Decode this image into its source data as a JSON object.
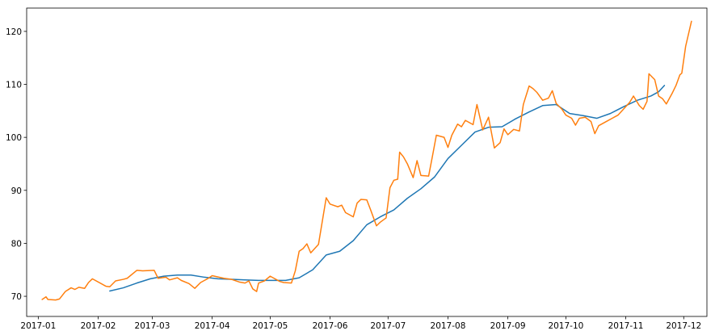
{
  "chart_data": {
    "type": "line",
    "title": "",
    "xlabel": "",
    "ylabel": "",
    "grid": false,
    "x_range": [
      "2016-12-26",
      "2017-12-13"
    ],
    "ylim": [
      66.2,
      124.4
    ],
    "x_ticks": [
      {
        "date": "2017-01-01",
        "label": "2017-01"
      },
      {
        "date": "2017-02-01",
        "label": "2017-02"
      },
      {
        "date": "2017-03-01",
        "label": "2017-03"
      },
      {
        "date": "2017-04-01",
        "label": "2017-04"
      },
      {
        "date": "2017-05-01",
        "label": "2017-05"
      },
      {
        "date": "2017-06-01",
        "label": "2017-06"
      },
      {
        "date": "2017-07-01",
        "label": "2017-07"
      },
      {
        "date": "2017-08-01",
        "label": "2017-08"
      },
      {
        "date": "2017-09-01",
        "label": "2017-09"
      },
      {
        "date": "2017-10-01",
        "label": "2017-10"
      },
      {
        "date": "2017-11-01",
        "label": "2017-11"
      },
      {
        "date": "2017-12-01",
        "label": "2017-12"
      }
    ],
    "y_ticks": [
      {
        "value": 70,
        "label": "70"
      },
      {
        "value": 80,
        "label": "80"
      },
      {
        "value": 90,
        "label": "90"
      },
      {
        "value": 100,
        "label": "100"
      },
      {
        "value": 110,
        "label": "110"
      },
      {
        "value": 120,
        "label": "120"
      }
    ],
    "series": [
      {
        "color": "#1f77b4",
        "points": [
          [
            "2017-02-07",
            71.0
          ],
          [
            "2017-02-14",
            71.6
          ],
          [
            "2017-02-21",
            72.5
          ],
          [
            "2017-02-28",
            73.3
          ],
          [
            "2017-03-07",
            73.8
          ],
          [
            "2017-03-14",
            74.0
          ],
          [
            "2017-03-21",
            74.0
          ],
          [
            "2017-03-28",
            73.6
          ],
          [
            "2017-04-04",
            73.3
          ],
          [
            "2017-04-11",
            73.2
          ],
          [
            "2017-04-18",
            73.1
          ],
          [
            "2017-04-25",
            73.0
          ],
          [
            "2017-05-02",
            73.0
          ],
          [
            "2017-05-09",
            73.0
          ],
          [
            "2017-05-16",
            73.5
          ],
          [
            "2017-05-23",
            75.0
          ],
          [
            "2017-05-30",
            77.8
          ],
          [
            "2017-06-06",
            78.5
          ],
          [
            "2017-06-13",
            80.5
          ],
          [
            "2017-06-20",
            83.5
          ],
          [
            "2017-06-27",
            85.0
          ],
          [
            "2017-07-04",
            86.3
          ],
          [
            "2017-07-11",
            88.5
          ],
          [
            "2017-07-18",
            90.3
          ],
          [
            "2017-07-25",
            92.5
          ],
          [
            "2017-08-01",
            96.0
          ],
          [
            "2017-08-08",
            98.5
          ],
          [
            "2017-08-15",
            101.0
          ],
          [
            "2017-08-22",
            101.9
          ],
          [
            "2017-08-29",
            102.0
          ],
          [
            "2017-09-05",
            103.5
          ],
          [
            "2017-09-12",
            104.8
          ],
          [
            "2017-09-19",
            106.0
          ],
          [
            "2017-09-26",
            106.2
          ],
          [
            "2017-10-03",
            104.5
          ],
          [
            "2017-10-10",
            104.1
          ],
          [
            "2017-10-17",
            103.6
          ],
          [
            "2017-10-24",
            104.5
          ],
          [
            "2017-10-31",
            105.8
          ],
          [
            "2017-11-07",
            107.0
          ],
          [
            "2017-11-14",
            107.8
          ],
          [
            "2017-11-18",
            108.6
          ],
          [
            "2017-11-21",
            109.8
          ]
        ]
      },
      {
        "color": "#ff7f0e",
        "points": [
          [
            "2017-01-03",
            69.4
          ],
          [
            "2017-01-05",
            69.9
          ],
          [
            "2017-01-06",
            69.4
          ],
          [
            "2017-01-10",
            69.3
          ],
          [
            "2017-01-12",
            69.5
          ],
          [
            "2017-01-15",
            70.9
          ],
          [
            "2017-01-18",
            71.6
          ],
          [
            "2017-01-20",
            71.3
          ],
          [
            "2017-01-22",
            71.7
          ],
          [
            "2017-01-25",
            71.5
          ],
          [
            "2017-01-27",
            72.6
          ],
          [
            "2017-01-29",
            73.3
          ],
          [
            "2017-02-05",
            71.9
          ],
          [
            "2017-02-07",
            71.8
          ],
          [
            "2017-02-10",
            72.9
          ],
          [
            "2017-02-14",
            73.2
          ],
          [
            "2017-02-16",
            73.4
          ],
          [
            "2017-02-21",
            74.9
          ],
          [
            "2017-02-24",
            74.8
          ],
          [
            "2017-03-02",
            74.9
          ],
          [
            "2017-03-04",
            73.4
          ],
          [
            "2017-03-08",
            73.6
          ],
          [
            "2017-03-10",
            73.1
          ],
          [
            "2017-03-14",
            73.5
          ],
          [
            "2017-03-16",
            73.0
          ],
          [
            "2017-03-20",
            72.4
          ],
          [
            "2017-03-23",
            71.5
          ],
          [
            "2017-03-26",
            72.6
          ],
          [
            "2017-03-30",
            73.4
          ],
          [
            "2017-04-01",
            73.9
          ],
          [
            "2017-04-07",
            73.4
          ],
          [
            "2017-04-11",
            73.2
          ],
          [
            "2017-04-15",
            72.7
          ],
          [
            "2017-04-18",
            72.5
          ],
          [
            "2017-04-20",
            72.9
          ],
          [
            "2017-04-22",
            71.4
          ],
          [
            "2017-04-24",
            70.9
          ],
          [
            "2017-04-25",
            72.5
          ],
          [
            "2017-04-28",
            72.9
          ],
          [
            "2017-05-01",
            73.8
          ],
          [
            "2017-05-03",
            73.4
          ],
          [
            "2017-05-06",
            72.8
          ],
          [
            "2017-05-08",
            72.6
          ],
          [
            "2017-05-12",
            72.5
          ],
          [
            "2017-05-14",
            74.8
          ],
          [
            "2017-05-16",
            78.5
          ],
          [
            "2017-05-18",
            79.0
          ],
          [
            "2017-05-20",
            79.9
          ],
          [
            "2017-05-22",
            78.2
          ],
          [
            "2017-05-26",
            79.8
          ],
          [
            "2017-05-28",
            84.2
          ],
          [
            "2017-05-30",
            88.6
          ],
          [
            "2017-06-01",
            87.4
          ],
          [
            "2017-06-05",
            86.9
          ],
          [
            "2017-06-07",
            87.2
          ],
          [
            "2017-06-09",
            85.8
          ],
          [
            "2017-06-13",
            85.0
          ],
          [
            "2017-06-15",
            87.6
          ],
          [
            "2017-06-17",
            88.3
          ],
          [
            "2017-06-20",
            88.2
          ],
          [
            "2017-06-22",
            86.3
          ],
          [
            "2017-06-25",
            83.3
          ],
          [
            "2017-06-27",
            84.0
          ],
          [
            "2017-06-30",
            84.8
          ],
          [
            "2017-07-02",
            90.5
          ],
          [
            "2017-07-04",
            91.9
          ],
          [
            "2017-07-06",
            92.1
          ],
          [
            "2017-07-07",
            97.2
          ],
          [
            "2017-07-09",
            96.3
          ],
          [
            "2017-07-11",
            95.0
          ],
          [
            "2017-07-14",
            92.4
          ],
          [
            "2017-07-16",
            95.6
          ],
          [
            "2017-07-18",
            92.8
          ],
          [
            "2017-07-22",
            92.7
          ],
          [
            "2017-07-24",
            96.5
          ],
          [
            "2017-07-26",
            100.4
          ],
          [
            "2017-07-30",
            100.0
          ],
          [
            "2017-08-01",
            98.1
          ],
          [
            "2017-08-03",
            100.4
          ],
          [
            "2017-08-06",
            102.5
          ],
          [
            "2017-08-08",
            102.0
          ],
          [
            "2017-08-10",
            103.2
          ],
          [
            "2017-08-14",
            102.4
          ],
          [
            "2017-08-16",
            106.2
          ],
          [
            "2017-08-19",
            101.4
          ],
          [
            "2017-08-22",
            103.8
          ],
          [
            "2017-08-25",
            98.0
          ],
          [
            "2017-08-28",
            99.0
          ],
          [
            "2017-08-30",
            101.6
          ],
          [
            "2017-09-01",
            100.5
          ],
          [
            "2017-09-04",
            101.5
          ],
          [
            "2017-09-07",
            101.2
          ],
          [
            "2017-09-09",
            106.2
          ],
          [
            "2017-09-12",
            109.7
          ],
          [
            "2017-09-14",
            109.2
          ],
          [
            "2017-09-16",
            108.5
          ],
          [
            "2017-09-19",
            107.0
          ],
          [
            "2017-09-22",
            107.4
          ],
          [
            "2017-09-24",
            108.8
          ],
          [
            "2017-09-26",
            106.4
          ],
          [
            "2017-09-29",
            105.3
          ],
          [
            "2017-10-01",
            104.2
          ],
          [
            "2017-10-04",
            103.6
          ],
          [
            "2017-10-06",
            102.3
          ],
          [
            "2017-10-08",
            103.6
          ],
          [
            "2017-10-11",
            103.8
          ],
          [
            "2017-10-14",
            103.0
          ],
          [
            "2017-10-16",
            100.7
          ],
          [
            "2017-10-18",
            102.2
          ],
          [
            "2017-10-22",
            103.0
          ],
          [
            "2017-10-25",
            103.6
          ],
          [
            "2017-10-28",
            104.2
          ],
          [
            "2017-10-31",
            105.4
          ],
          [
            "2017-11-03",
            106.6
          ],
          [
            "2017-11-05",
            107.8
          ],
          [
            "2017-11-08",
            106.0
          ],
          [
            "2017-11-10",
            105.3
          ],
          [
            "2017-11-12",
            106.8
          ],
          [
            "2017-11-13",
            112.0
          ],
          [
            "2017-11-16",
            110.9
          ],
          [
            "2017-11-18",
            107.8
          ],
          [
            "2017-11-20",
            107.3
          ],
          [
            "2017-11-22",
            106.3
          ],
          [
            "2017-11-25",
            108.3
          ],
          [
            "2017-11-27",
            109.8
          ],
          [
            "2017-11-29",
            111.8
          ],
          [
            "2017-11-30",
            112.1
          ],
          [
            "2017-12-02",
            117.2
          ],
          [
            "2017-12-05",
            121.9
          ]
        ]
      }
    ]
  }
}
